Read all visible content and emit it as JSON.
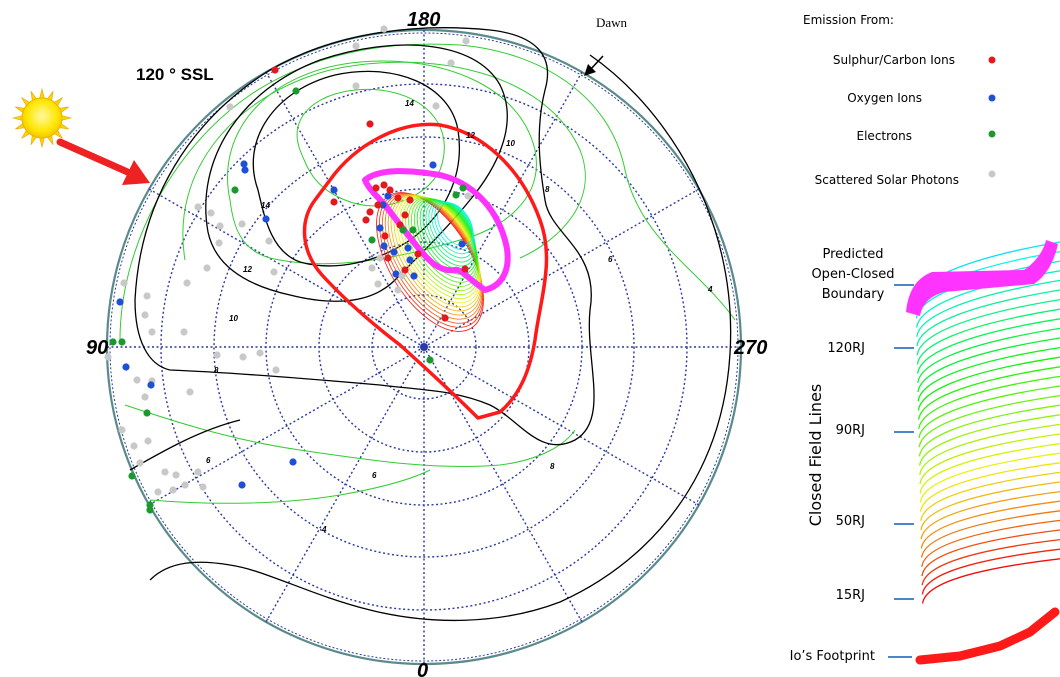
{
  "polar_plot": {
    "ssl_label": "120 ° SSL",
    "axis_labels": {
      "top": "180",
      "bottom": "0",
      "left": "90",
      "right": "270"
    },
    "dawn_label": "Dawn",
    "contour_labels": [
      "14",
      "14",
      "12",
      "12",
      "10",
      "10",
      "8",
      "8",
      "8",
      "6",
      "6",
      "6",
      "4",
      "4"
    ]
  },
  "legend": {
    "title": "Emission From:",
    "items": [
      {
        "label": "Sulphur/Carbon Ions",
        "color": "#e31a1c"
      },
      {
        "label": "Oxygen Ions",
        "color": "#1f4fd6"
      },
      {
        "label": "Electrons",
        "color": "#1a9a2e"
      },
      {
        "label": "Scattered Solar Photons",
        "color": "#c8c8c8"
      }
    ]
  },
  "key": {
    "predicted_boundary": [
      "Predicted",
      "Open-Closed",
      "Boundary"
    ],
    "closed_field_lines": "Closed Field Lines",
    "ticks": [
      "120RJ",
      "90RJ",
      "50RJ",
      "15RJ"
    ],
    "io_footprint": "Io’s Footprint"
  },
  "colors": {
    "grid": "#2b3aa0",
    "io_footprint": "#ff1a1a",
    "boundary": "#ff33ff",
    "contour_black": "#000000",
    "contour_green": "#33cc33",
    "sun": "#ffe600",
    "sun_arrow": "#ee2222",
    "key_tick": "#4a86c8"
  },
  "icons": {
    "sun": "sun-icon",
    "sun_arrow": "arrow-right-down-icon",
    "dawn_arrow": "arrow-down-left-icon"
  }
}
